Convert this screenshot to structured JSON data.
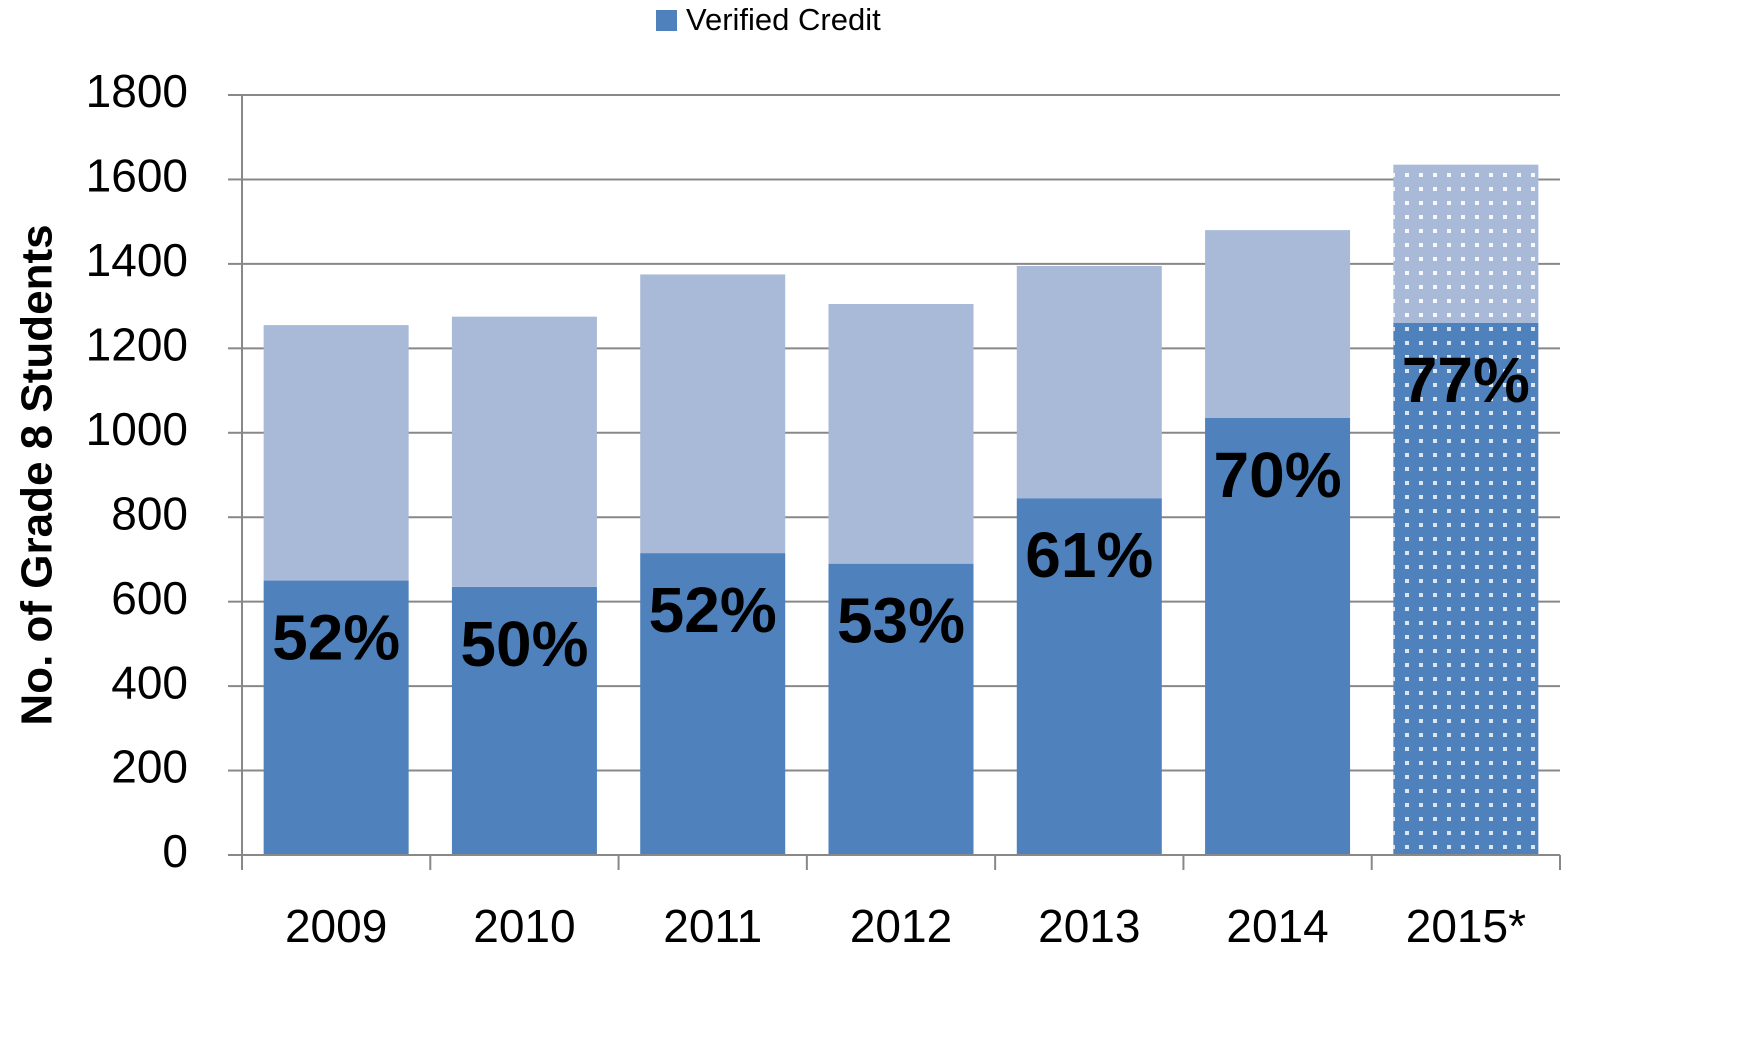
{
  "chart_data": {
    "type": "stacked_bar",
    "y_axis_label": "No. of Grade 8 Students",
    "categories": [
      "2009",
      "2010",
      "2011",
      "2012",
      "2013",
      "2014",
      "2015*"
    ],
    "series": [
      {
        "name": "Verified Credit",
        "color": "#4f81bd",
        "values": [
          650,
          635,
          715,
          690,
          845,
          1035,
          1260
        ]
      },
      {
        "color": "#a9bad8",
        "values": [
          605,
          640,
          660,
          615,
          550,
          445,
          375
        ]
      }
    ],
    "bar_labels": [
      "52%",
      "50%",
      "52%",
      "53%",
      "61%",
      "70%",
      "77%"
    ],
    "dotted_category": 6,
    "ylim": [
      0,
      1800
    ],
    "yticks": [
      0,
      200,
      400,
      600,
      800,
      1000,
      1200,
      1400,
      1600,
      1800
    ],
    "grid": true,
    "legend": "top"
  }
}
